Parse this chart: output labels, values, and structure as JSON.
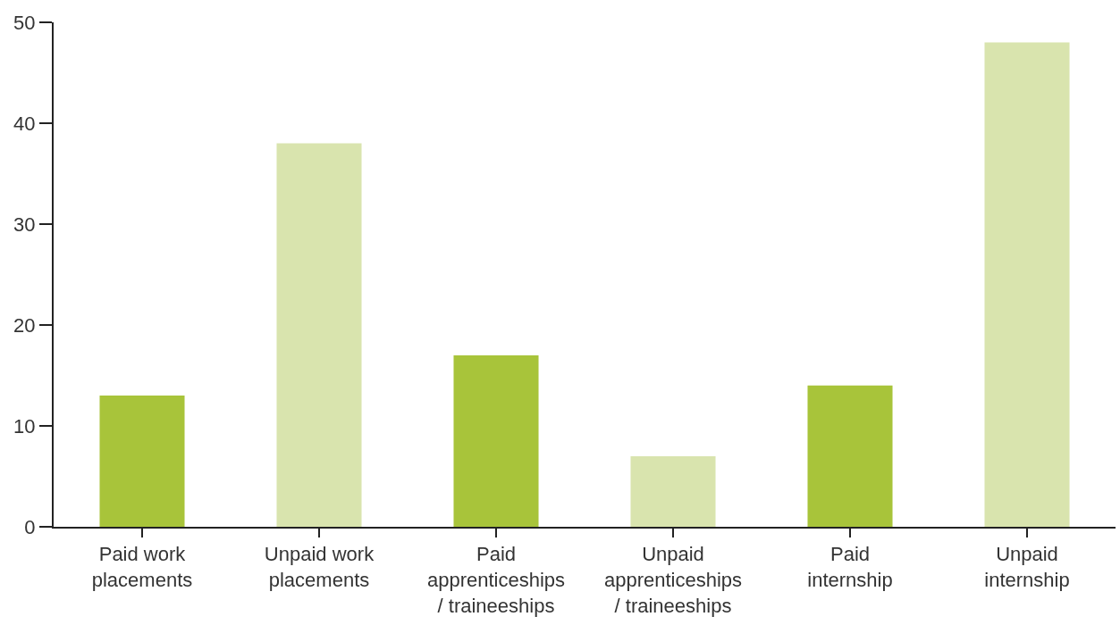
{
  "chart_data": {
    "type": "bar",
    "categories": [
      "Paid work placements",
      "Unpaid work placements",
      "Paid apprenticeships / traineeships",
      "Unpaid apprenticeships / traineeships",
      "Paid internship",
      "Unpaid internship"
    ],
    "values": [
      13,
      38,
      17,
      7,
      14,
      48
    ],
    "colors": [
      "#a8c43a",
      "#d9e4ae",
      "#a8c43a",
      "#d9e4ae",
      "#a8c43a",
      "#d9e4ae"
    ],
    "ylim": [
      0,
      50
    ],
    "yticks": [
      0,
      10,
      20,
      30,
      40,
      50
    ]
  }
}
